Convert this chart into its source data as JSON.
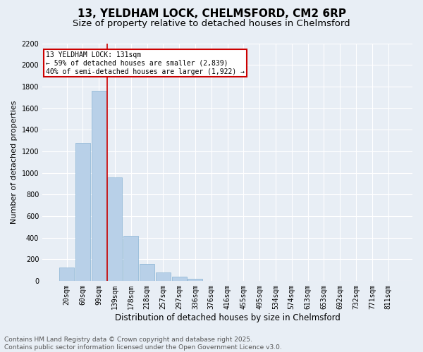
{
  "title1": "13, YELDHAM LOCK, CHELMSFORD, CM2 6RP",
  "title2": "Size of property relative to detached houses in Chelmsford",
  "xlabel": "Distribution of detached houses by size in Chelmsford",
  "ylabel": "Number of detached properties",
  "categories": [
    "20sqm",
    "60sqm",
    "99sqm",
    "139sqm",
    "178sqm",
    "218sqm",
    "257sqm",
    "297sqm",
    "336sqm",
    "376sqm",
    "416sqm",
    "455sqm",
    "495sqm",
    "534sqm",
    "574sqm",
    "613sqm",
    "653sqm",
    "692sqm",
    "732sqm",
    "771sqm",
    "811sqm"
  ],
  "values": [
    120,
    1280,
    1760,
    960,
    415,
    155,
    78,
    38,
    20,
    0,
    0,
    0,
    0,
    0,
    0,
    0,
    0,
    0,
    0,
    0,
    0
  ],
  "bar_color": "#b8d0e8",
  "bar_edge_color": "#8ab4d4",
  "vline_color": "#cc0000",
  "annotation_text": "13 YELDHAM LOCK: 131sqm\n← 59% of detached houses are smaller (2,839)\n40% of semi-detached houses are larger (1,922) →",
  "annotation_box_color": "#cc0000",
  "ylim": [
    0,
    2200
  ],
  "yticks": [
    0,
    200,
    400,
    600,
    800,
    1000,
    1200,
    1400,
    1600,
    1800,
    2000,
    2200
  ],
  "background_color": "#e8eef5",
  "grid_color": "#ffffff",
  "footer_text": "Contains HM Land Registry data © Crown copyright and database right 2025.\nContains public sector information licensed under the Open Government Licence v3.0.",
  "title1_fontsize": 11,
  "title2_fontsize": 9.5,
  "xlabel_fontsize": 8.5,
  "ylabel_fontsize": 8,
  "tick_fontsize": 7,
  "footer_fontsize": 6.5
}
